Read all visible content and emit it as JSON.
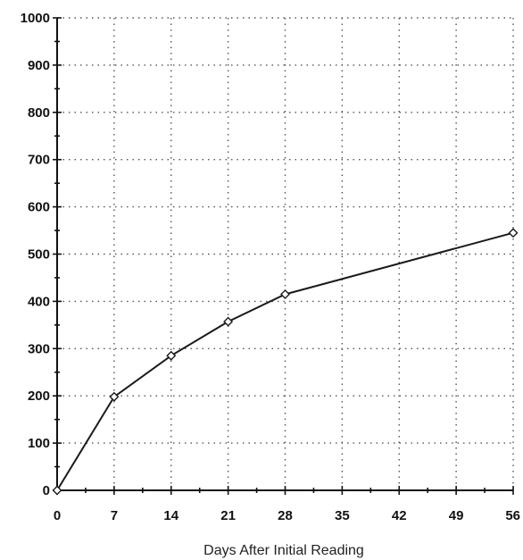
{
  "chart_data": {
    "type": "line",
    "title": "",
    "xlabel": "Days After Initial Reading",
    "ylabel": "",
    "xlim": [
      0,
      56
    ],
    "ylim": [
      0,
      1000
    ],
    "xticks": [
      0,
      7,
      14,
      21,
      28,
      35,
      42,
      49,
      56
    ],
    "yticks": [
      0,
      100,
      200,
      300,
      400,
      500,
      600,
      700,
      800,
      900,
      1000
    ],
    "grid": true,
    "legend": "none",
    "series": [
      {
        "marker": "diamond",
        "color": "#1a1a1a",
        "x": [
          0,
          7,
          14,
          21,
          28,
          56
        ],
        "y": [
          0,
          198,
          285,
          357,
          415,
          545
        ]
      }
    ]
  }
}
